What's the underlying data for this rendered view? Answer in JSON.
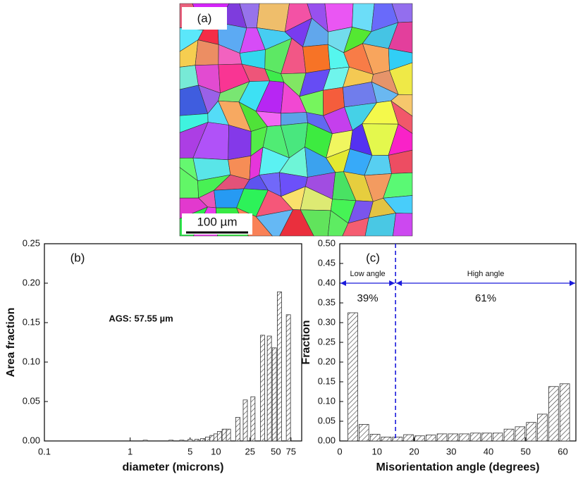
{
  "panel_a": {
    "label": "(a)",
    "scale_bar": "100 µm"
  },
  "chart_data": [
    {
      "type": "bar",
      "title": "(b)",
      "annotation": "AGS: 57.55  µm",
      "xlabel": "diameter (microns)",
      "ylabel": "Area fraction",
      "xscale": "log",
      "x": [
        1.5,
        3,
        4,
        5,
        6,
        7,
        8,
        9,
        10,
        11,
        12.5,
        14,
        18,
        22,
        27,
        35,
        42,
        48,
        55,
        70
      ],
      "values": [
        0.001,
        0.001,
        0.001,
        0.002,
        0.002,
        0.003,
        0.005,
        0.007,
        0.009,
        0.012,
        0.015,
        0.015,
        0.03,
        0.052,
        0.056,
        0.134,
        0.133,
        0.118,
        0.189,
        0.16
      ],
      "xlim": [
        0.1,
        100
      ],
      "xticks": [
        0.1,
        1,
        5,
        10,
        25,
        50,
        75
      ],
      "ylim": [
        0,
        0.25
      ],
      "yticks": [
        {
          "value": 0,
          "label": "0.00"
        },
        {
          "value": 0.05,
          "label": "0.05"
        },
        {
          "value": 0.1,
          "label": "0.10"
        },
        {
          "value": 0.15,
          "label": "0.15"
        },
        {
          "value": 0.2,
          "label": "0.20"
        },
        {
          "value": 0.25,
          "label": "0.25"
        }
      ],
      "color": "#333333",
      "annotation_color": "#1a1adb"
    },
    {
      "type": "histogram",
      "title": "(c)",
      "xlabel": "Misorientation angle (degrees)",
      "ylabel": "Fraction",
      "bins": [
        2,
        5,
        8,
        11,
        14,
        17,
        20,
        23,
        26,
        29,
        32,
        35,
        38,
        41,
        44,
        47,
        50,
        53,
        56,
        59,
        62
      ],
      "values": [
        0.325,
        0.042,
        0.017,
        0.01,
        0.01,
        0.016,
        0.013,
        0.015,
        0.018,
        0.018,
        0.018,
        0.02,
        0.02,
        0.02,
        0.03,
        0.036,
        0.047,
        0.068,
        0.138,
        0.145
      ],
      "xlim": [
        0,
        63.5
      ],
      "xticks": [
        0,
        10,
        20,
        30,
        40,
        50,
        60
      ],
      "ylim": [
        0,
        0.5
      ],
      "yticks": [
        {
          "value": 0,
          "label": "0.00"
        },
        {
          "value": 0.05,
          "label": "0.05"
        },
        {
          "value": 0.1,
          "label": "0.10"
        },
        {
          "value": 0.15,
          "label": "0.15"
        },
        {
          "value": 0.2,
          "label": "0.20"
        },
        {
          "value": 0.25,
          "label": "0.25"
        },
        {
          "value": 0.3,
          "label": "0.30"
        },
        {
          "value": 0.35,
          "label": "0.35"
        },
        {
          "value": 0.4,
          "label": "0.40"
        },
        {
          "value": 0.45,
          "label": "0.45"
        },
        {
          "value": 0.5,
          "label": "0.50"
        }
      ],
      "color": "#333333",
      "threshold": 15,
      "arrow_y": 0.4,
      "annotation_color": "#1a1adb",
      "low_label": "Low angle",
      "high_label": "High angle",
      "low_pct": "39%",
      "high_pct": "61%"
    }
  ]
}
